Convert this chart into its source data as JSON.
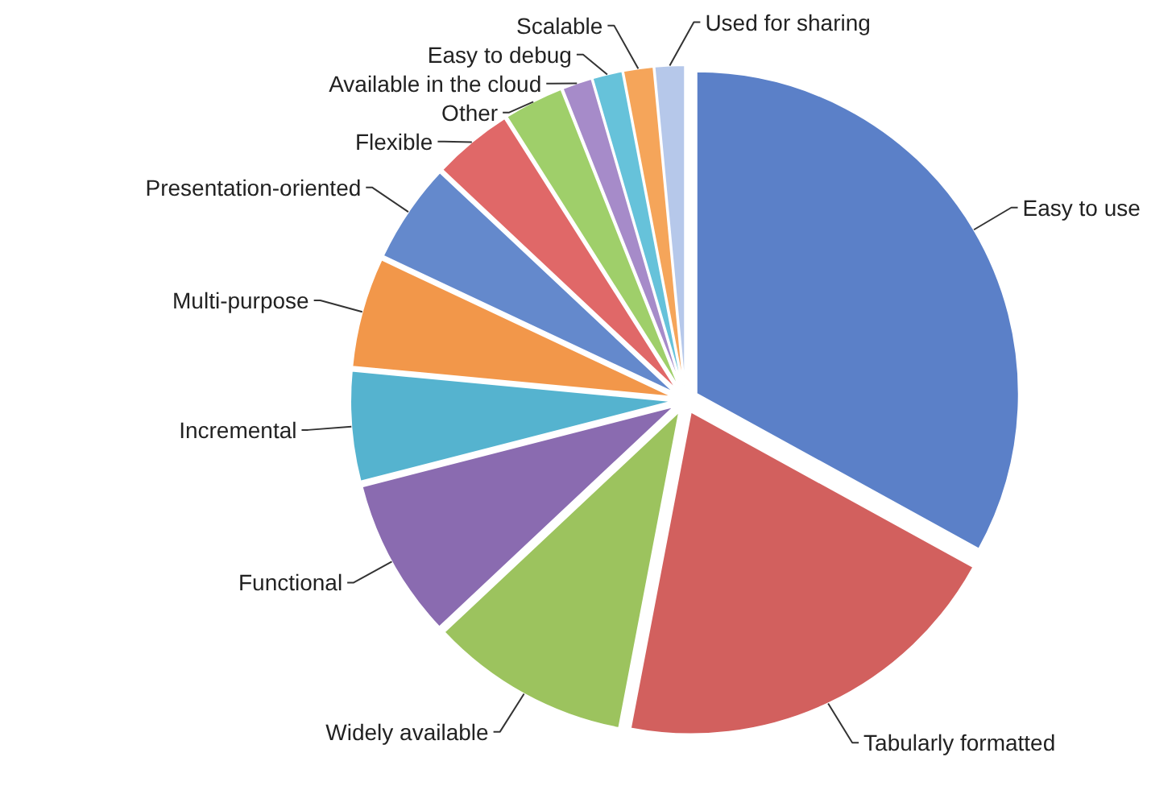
{
  "chart_data": {
    "type": "pie",
    "categories": [
      "Easy to use",
      "Tabularly formatted",
      "Widely available",
      "Functional",
      "Incremental",
      "Multi-purpose",
      "Presentation-oriented",
      "Flexible",
      "Other",
      "Available in the cloud",
      "Easy to debug",
      "Scalable",
      "Used for sharing"
    ],
    "values": [
      33,
      20,
      10,
      8,
      5.5,
      5.5,
      5,
      4,
      3,
      1.5,
      1.5,
      1.5,
      1.5
    ],
    "colors": [
      "#5b80c8",
      "#d2605e",
      "#9cc35e",
      "#8a6bb0",
      "#55b3cf",
      "#f2974a",
      "#6489cc",
      "#e06868",
      "#9fcf6a",
      "#a68bc9",
      "#66c2da",
      "#f5a55a",
      "#b6c8ea"
    ]
  }
}
